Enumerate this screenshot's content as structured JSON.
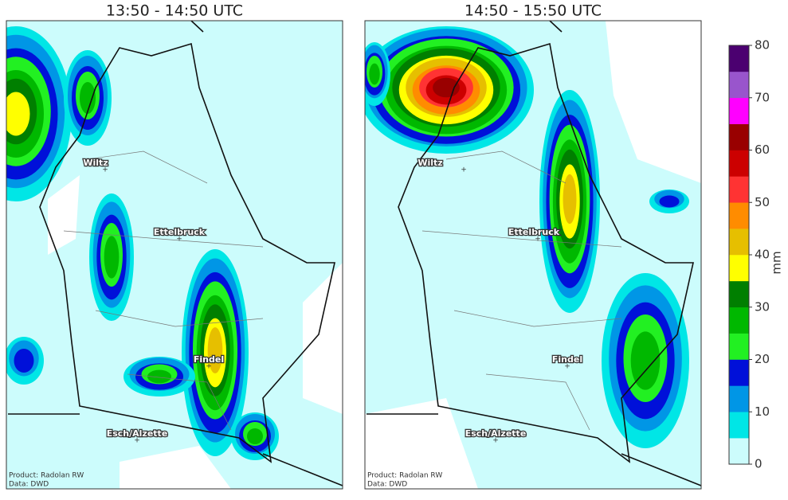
{
  "panels": [
    {
      "title": "13:50 - 14:50 UTC",
      "cities": [
        "Wiltz",
        "Ettelbruck",
        "Findel",
        "Esch/Alzette"
      ],
      "footer": [
        "Product: Radolan RW",
        "Data: DWD"
      ]
    },
    {
      "title": "14:50 - 15:50 UTC",
      "cities": [
        "Wiltz",
        "Ettelbruck",
        "Findel",
        "Esch/Alzette"
      ],
      "footer": [
        "Product: Radolan RW",
        "Data: DWD"
      ]
    }
  ],
  "colorbar": {
    "label": "mm",
    "lim": [
      0,
      80
    ],
    "ticks": [
      0,
      10,
      20,
      30,
      40,
      50,
      60,
      70,
      80
    ],
    "colors": [
      "#ccfcfc",
      "#00e6e6",
      "#0096e6",
      "#0010d9",
      "#22f022",
      "#00b800",
      "#007f00",
      "#ffff00",
      "#e6bf00",
      "#ff8c00",
      "#ff3333",
      "#cc0000",
      "#990000",
      "#ff00ff",
      "#9955cc",
      "#4b0070"
    ]
  }
}
